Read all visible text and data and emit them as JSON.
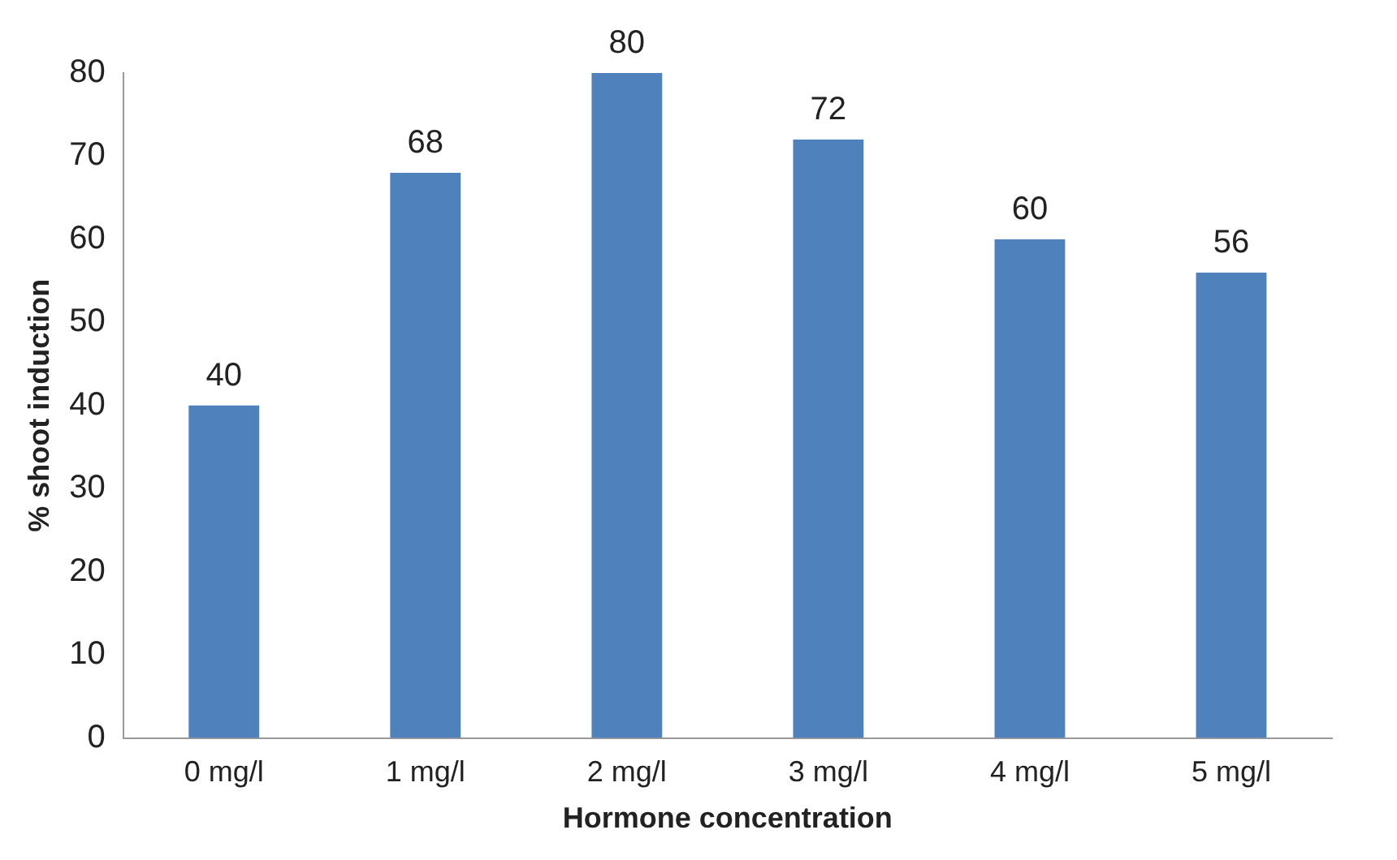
{
  "chart_data": {
    "type": "bar",
    "xlabel": "Hormone concentration",
    "ylabel": "% shoot induction",
    "categories": [
      "0 mg/l",
      "1 mg/l",
      "2 mg/l",
      "3 mg/l",
      "4 mg/l",
      "5 mg/l"
    ],
    "values": [
      40,
      68,
      80,
      72,
      60,
      56
    ],
    "color": "#4f81bd",
    "ylim": [
      0,
      80
    ],
    "yticks": [
      0,
      10,
      20,
      30,
      40,
      50,
      60,
      70,
      80
    ],
    "grid": false,
    "legend": false,
    "data_labels": true
  }
}
